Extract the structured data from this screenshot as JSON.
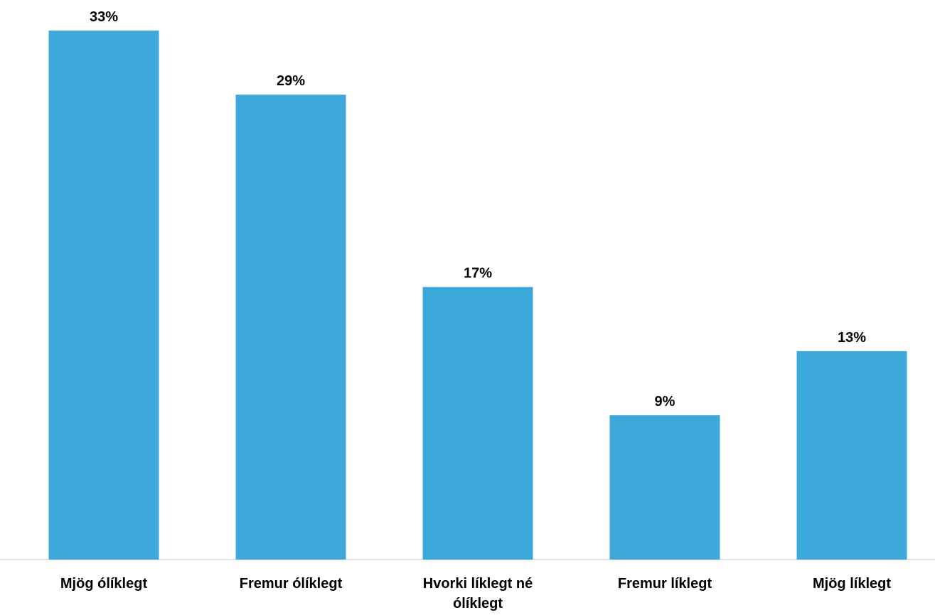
{
  "chart_data": {
    "type": "bar",
    "categories": [
      "Mjög ólíklegt",
      "Fremur ólíklegt",
      "Hvorki líklegt né ólíklegt",
      "Fremur líklegt",
      "Mjög líklegt"
    ],
    "category_lines": [
      [
        "Mjög ólíklegt"
      ],
      [
        "Fremur ólíklegt"
      ],
      [
        "Hvorki líklegt né",
        "ólíklegt"
      ],
      [
        "Fremur líklegt"
      ],
      [
        "Mjög líklegt"
      ]
    ],
    "values": [
      33,
      29,
      17,
      9,
      13
    ],
    "value_labels": [
      "33%",
      "29%",
      "17%",
      "9%",
      "13%"
    ],
    "unit": "%",
    "title": "",
    "xlabel": "",
    "ylabel": "",
    "ylim": [
      0,
      33
    ],
    "grid": false,
    "legend": "none",
    "bar_color": "#3DA9DA",
    "axis_color": "#D9D9D9"
  }
}
